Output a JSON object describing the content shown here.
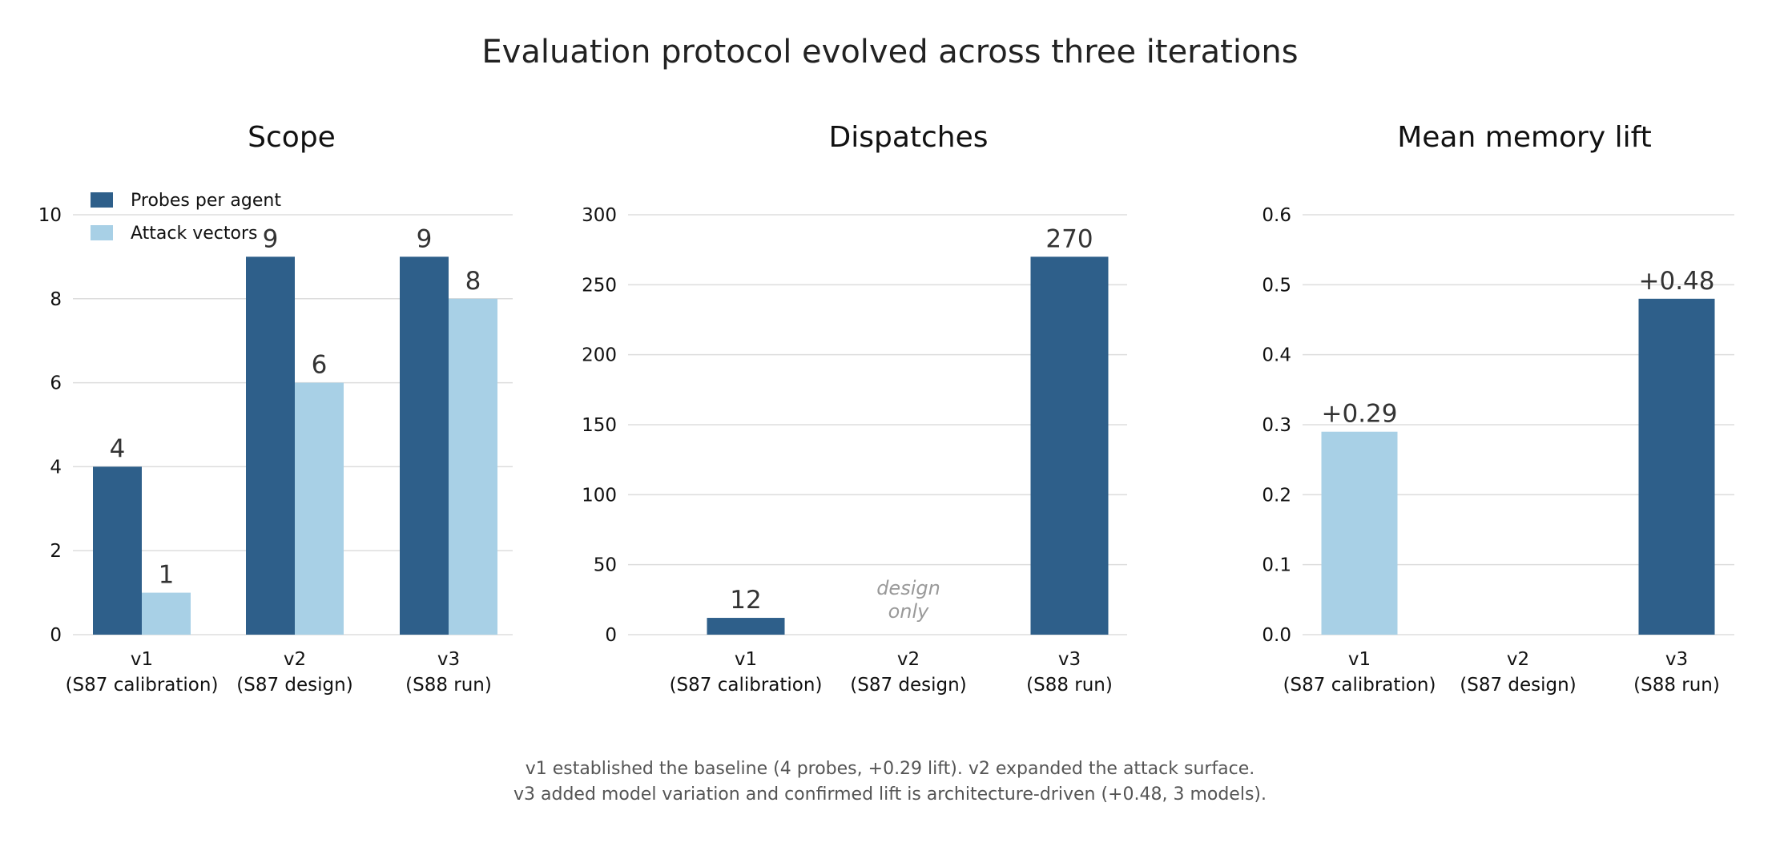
{
  "title": "Evaluation protocol evolved across three iterations",
  "footer": [
    "v1 established the baseline (4 probes, +0.29 lift). v2 expanded the attack surface.",
    "v3 added model variation and confirmed lift is architecture-driven (+0.48, 3 models)."
  ],
  "colors": {
    "dark": "#2e5f8a",
    "light": "#a8d0e6"
  },
  "chart_data": [
    {
      "type": "bar",
      "title": "Scope",
      "categories": [
        [
          "v1",
          "(S87 calibration)"
        ],
        [
          "v2",
          "(S87 design)"
        ],
        [
          "v3",
          "(S88 run)"
        ]
      ],
      "series": [
        {
          "name": "Probes per agent",
          "values": [
            4,
            9,
            9
          ],
          "labels": [
            "4",
            "9",
            "9"
          ],
          "color": "#2e5f8a"
        },
        {
          "name": "Attack vectors",
          "values": [
            1,
            6,
            8
          ],
          "labels": [
            "1",
            "6",
            "8"
          ],
          "color": "#a8d0e6"
        }
      ],
      "ylim": [
        0,
        10
      ],
      "yticks": [
        "0",
        "2",
        "4",
        "6",
        "8",
        "10"
      ],
      "grid": true,
      "legend": "top-left"
    },
    {
      "type": "bar",
      "title": "Dispatches",
      "categories": [
        [
          "v1",
          "(S87 calibration)"
        ],
        [
          "v2",
          "(S87 design)"
        ],
        [
          "v3",
          "(S88 run)"
        ]
      ],
      "series": [
        {
          "values": [
            12,
            null,
            270
          ],
          "labels": [
            "12",
            "",
            "270"
          ],
          "colors": [
            "#2e5f8a",
            null,
            "#2e5f8a"
          ]
        }
      ],
      "annotations": [
        {
          "category": "v2",
          "text": [
            "design",
            "only"
          ]
        }
      ],
      "ylim": [
        0,
        300
      ],
      "yticks": [
        "0",
        "50",
        "100",
        "150",
        "200",
        "250",
        "300"
      ],
      "grid": true
    },
    {
      "type": "bar",
      "title": "Mean memory lift",
      "categories": [
        [
          "v1",
          "(S87 calibration)"
        ],
        [
          "v2",
          "(S87 design)"
        ],
        [
          "v3",
          "(S88 run)"
        ]
      ],
      "series": [
        {
          "values": [
            0.29,
            null,
            0.48
          ],
          "labels": [
            "+0.29",
            "",
            "+0.48"
          ],
          "colors": [
            "#a8d0e6",
            null,
            "#2e5f8a"
          ]
        }
      ],
      "ylim": [
        0,
        0.6
      ],
      "yticks": [
        "0.0",
        "0.1",
        "0.2",
        "0.3",
        "0.4",
        "0.5",
        "0.6"
      ],
      "grid": true
    }
  ]
}
